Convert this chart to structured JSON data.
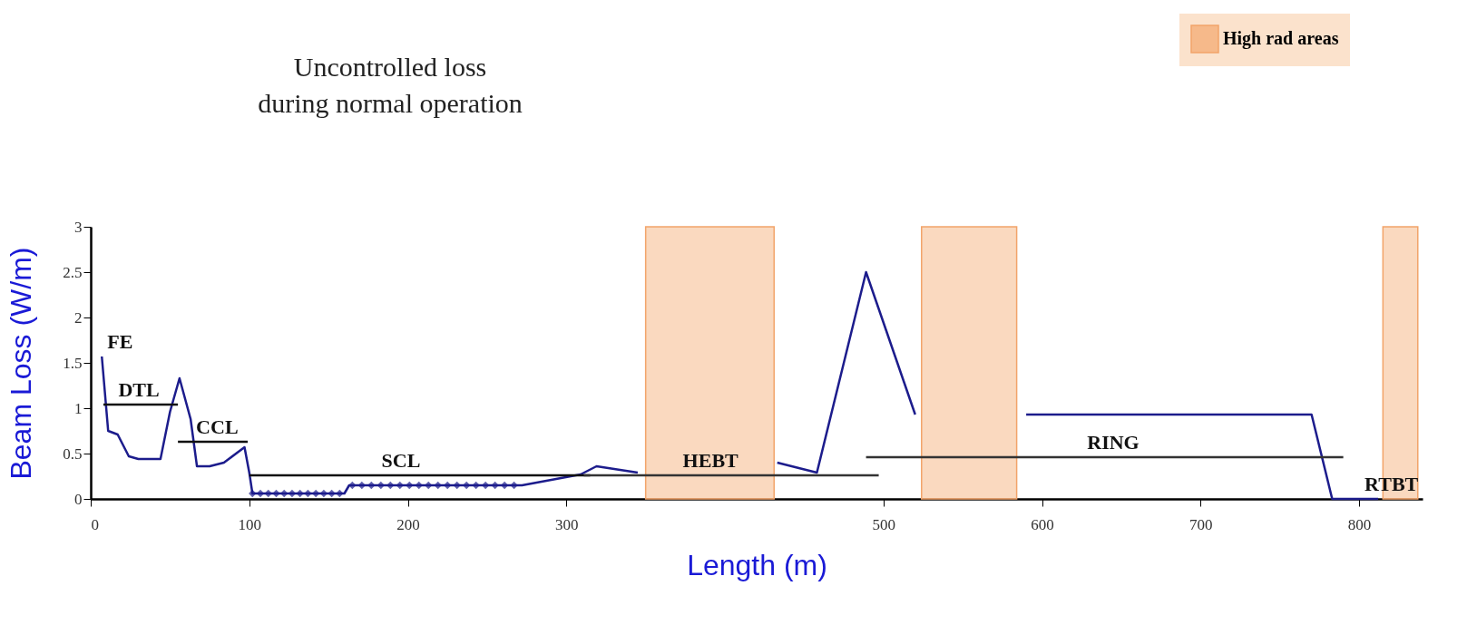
{
  "chart_data": {
    "type": "line",
    "title": "Uncontrolled loss\nduring normal operation",
    "xlabel": "Length (m)",
    "ylabel": "Beam  Loss (W/m)",
    "xlim": [
      0,
      840
    ],
    "xticks": [
      0,
      100,
      200,
      300,
      500,
      600,
      700,
      800
    ],
    "ylim": [
      0,
      3
    ],
    "yticks": [
      {
        "value": 0,
        "label": "0"
      },
      0.5,
      {
        "value": 1,
        "label": "1"
      },
      1.5,
      {
        "value": 2,
        "label": "2"
      },
      2.5,
      {
        "value": 3,
        "label": "3"
      }
    ],
    "grid": false,
    "legend": "top right",
    "marker": "none",
    "series": [
      {
        "color": "#1c1c8c",
        "x": [
          7,
          11,
          17,
          24,
          30,
          44,
          50,
          56,
          63,
          67,
          75,
          84,
          97,
          100,
          102,
          160,
          163,
          272,
          309,
          319,
          345
        ],
        "values": [
          1.57,
          0.75,
          0.71,
          0.47,
          0.44,
          0.44,
          0.96,
          1.33,
          0.88,
          0.36,
          0.36,
          0.4,
          0.57,
          0.29,
          0.06,
          0.06,
          0.15,
          0.15,
          0.27,
          0.36,
          0.29
        ]
      },
      {
        "color": "#1c1c8c",
        "x": [
          433,
          458,
          489,
          520
        ],
        "values": [
          0.4,
          0.29,
          2.5,
          0.93
        ]
      },
      {
        "color": "#1c1c8c",
        "x": [
          590,
          770,
          783,
          812
        ],
        "values": [
          0.93,
          0.93,
          0,
          0
        ]
      },
      {
        "type": "scatter",
        "marker": "diamond",
        "color": "#1c1c8c",
        "x": [
          102,
          107,
          112,
          117,
          122,
          127,
          132,
          137,
          142,
          147,
          152,
          157,
          165,
          171,
          177,
          183,
          189,
          195,
          201,
          207,
          213,
          219,
          225,
          231,
          237,
          243,
          249,
          255,
          261,
          267
        ],
        "values": [
          0.06,
          0.06,
          0.06,
          0.06,
          0.06,
          0.06,
          0.06,
          0.06,
          0.06,
          0.06,
          0.06,
          0.06,
          0.15,
          0.15,
          0.15,
          0.15,
          0.15,
          0.15,
          0.15,
          0.15,
          0.15,
          0.15,
          0.15,
          0.15,
          0.15,
          0.15,
          0.15,
          0.15,
          0.15,
          0.15
        ]
      },
      {
        "type": "line",
        "color": "#111111",
        "x": [
          8,
          55
        ],
        "values": [
          1.04,
          1.04
        ]
      },
      {
        "type": "line",
        "color": "#111111",
        "x": [
          55,
          99
        ],
        "values": [
          0.63,
          0.63
        ]
      },
      {
        "type": "line",
        "color": "#111111",
        "x": [
          100,
          315
        ],
        "values": [
          0.26,
          0.26
        ]
      },
      {
        "type": "line",
        "color": "#333333",
        "x": [
          311,
          497
        ],
        "values": [
          0.26,
          0.26
        ]
      },
      {
        "type": "line",
        "color": "#333333",
        "x": [
          489,
          790
        ],
        "values": [
          0.46,
          0.46
        ]
      }
    ],
    "bands": [
      {
        "axis": "x",
        "from": 350,
        "to": 431,
        "label": "High rad areas",
        "color": "#f6b98a"
      },
      {
        "axis": "x",
        "from": 524,
        "to": 584,
        "color": "#f6b98a"
      },
      {
        "axis": "x",
        "from": 815,
        "to": 837,
        "color": "#f6b98a"
      }
    ],
    "annotations": [
      {
        "text": "FE",
        "x": 7,
        "y": 1.57
      },
      {
        "text": "DTL",
        "x": 14,
        "y": 1.04
      },
      {
        "text": "CCL",
        "x": 63,
        "y": 0.63
      },
      {
        "text": "SCL",
        "x": 180,
        "y": 0.26
      },
      {
        "text": "HEBT",
        "x": 370,
        "y": 0.26
      },
      {
        "text": "RING",
        "x": 625,
        "y": 0.46
      },
      {
        "text": "RTBT",
        "x": 800,
        "y": 0
      }
    ]
  }
}
